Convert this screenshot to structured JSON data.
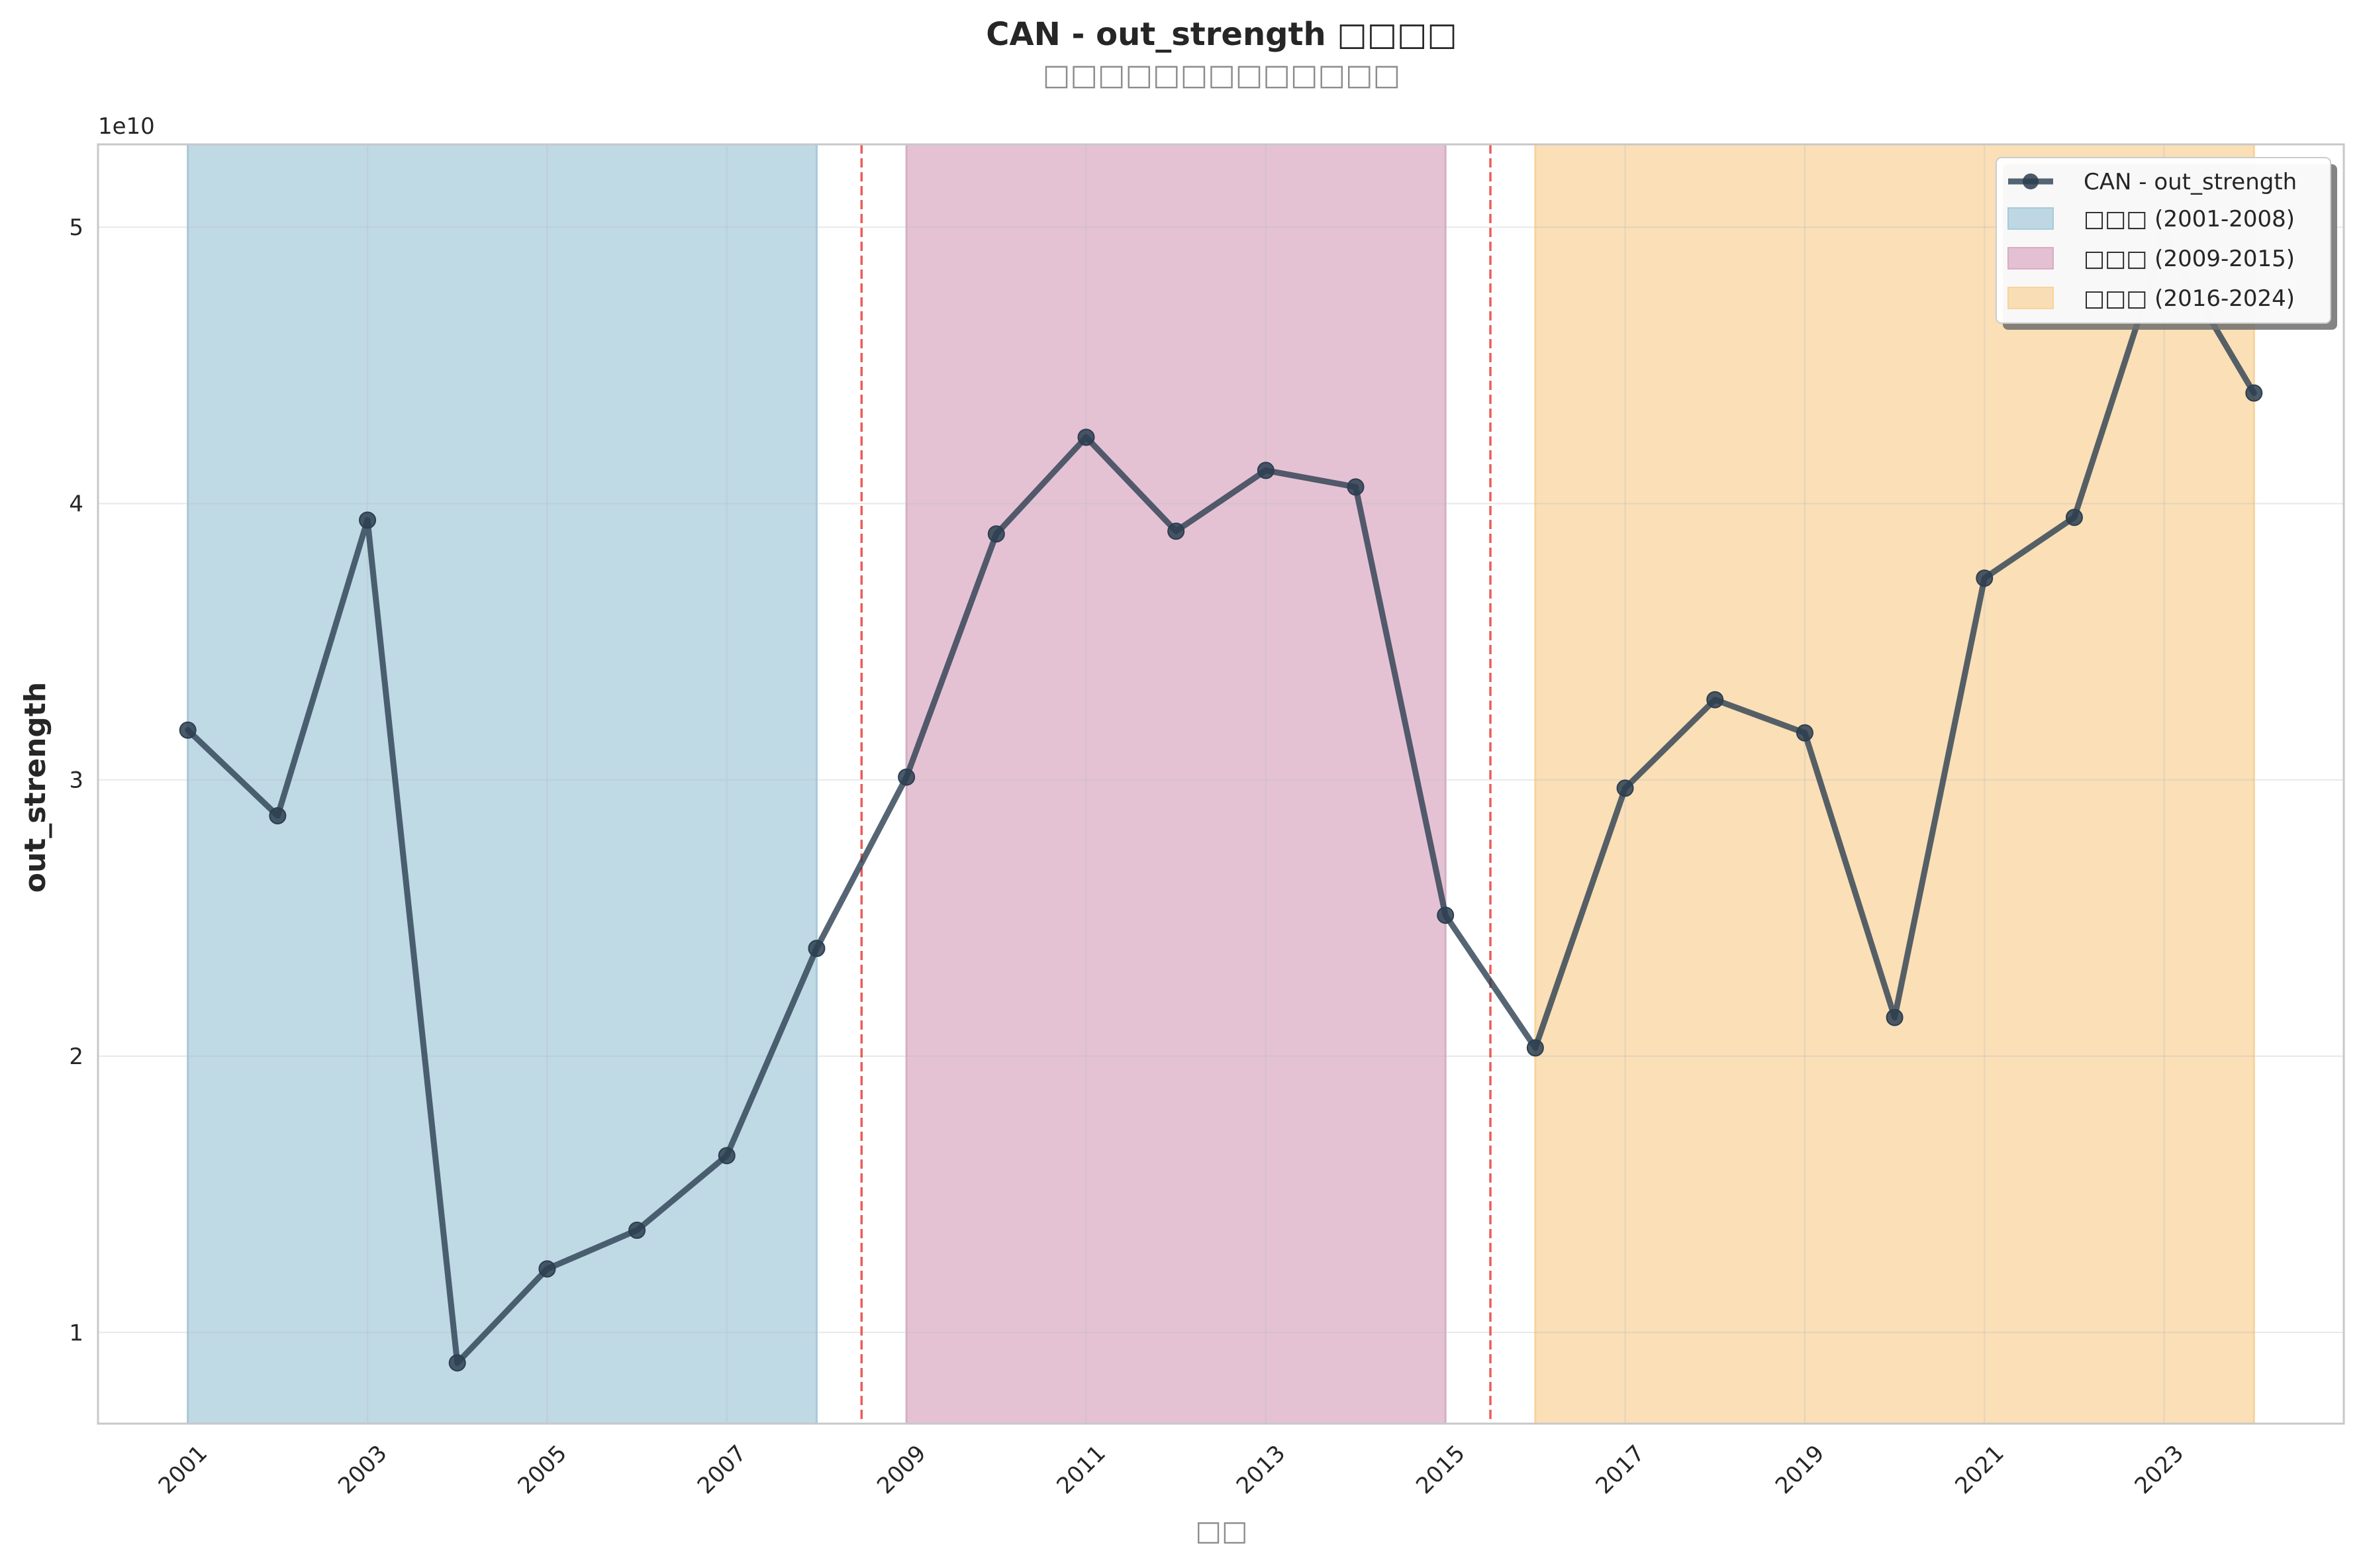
{
  "chart_data": {
    "type": "line",
    "title": "CAN - out_strength □□□□",
    "subtitle": "□□□□□□□□□□□□□",
    "xlabel": "□□",
    "ylabel": "out_strength",
    "y_offset_label": "1e10",
    "y_scale": 10000000000.0,
    "xlim": [
      2000,
      2025
    ],
    "ylim": [
      6700000000.0,
      53000000000.0
    ],
    "x_ticks": [
      2001,
      2003,
      2005,
      2007,
      2009,
      2011,
      2013,
      2015,
      2017,
      2019,
      2021,
      2023
    ],
    "y_ticks": [
      10000000000.0,
      20000000000.0,
      30000000000.0,
      40000000000.0,
      50000000000.0
    ],
    "y_tick_labels": [
      "1",
      "2",
      "3",
      "4",
      "5"
    ],
    "grid": true,
    "legend_position": "top-right",
    "series": [
      {
        "name": "CAN - out_strength",
        "color": "#2c3e50",
        "x": [
          2001,
          2002,
          2003,
          2004,
          2005,
          2006,
          2007,
          2008,
          2009,
          2010,
          2011,
          2012,
          2013,
          2014,
          2015,
          2016,
          2017,
          2018,
          2019,
          2020,
          2021,
          2022,
          2023,
          2024
        ],
        "y": [
          31800000000.0,
          28700000000.0,
          39400000000.0,
          8900000000.0,
          12300000000.0,
          13700000000.0,
          16400000000.0,
          23900000000.0,
          30100000000.0,
          38900000000.0,
          42400000000.0,
          39000000000.0,
          41200000000.0,
          40600000000.0,
          25100000000.0,
          20300000000.0,
          29700000000.0,
          32900000000.0,
          31700000000.0,
          21400000000.0,
          37300000000.0,
          39500000000.0,
          49500000000.0,
          44000000000.0
        ]
      }
    ],
    "periods": [
      {
        "label": "□□□ (2001-2008)",
        "start": 2001,
        "end": 2008,
        "color": "#a6cbdb"
      },
      {
        "label": "□□□ (2009-2015)",
        "start": 2009,
        "end": 2015,
        "color": "#d9abc4"
      },
      {
        "label": "□□□ (2016-2024)",
        "start": 2016,
        "end": 2024,
        "color": "#f8d39b"
      }
    ],
    "breakpoints": [
      2008.5,
      2015.5
    ],
    "breakpoint_color": "#e8413c"
  }
}
